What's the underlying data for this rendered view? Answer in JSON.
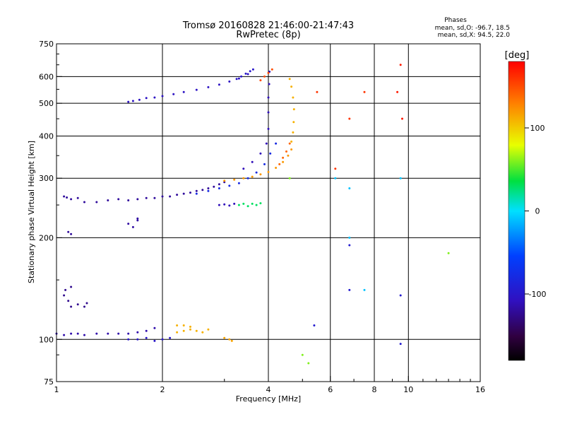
{
  "chart_data": {
    "type": "scatter",
    "title": "Tromsø 20160828 21:46:00-21:47:43",
    "subtitle": "RwPretec (8p)",
    "xlabel": "Frequency [MHz]",
    "ylabel": "Stationary phase Virtual Height [km]",
    "xscale": "log",
    "yscale": "log",
    "xlim": [
      1,
      16
    ],
    "ylim": [
      75,
      750
    ],
    "x_ticks": [
      1,
      2,
      4,
      6,
      8,
      10,
      16
    ],
    "y_ticks": [
      75,
      100,
      200,
      300,
      400,
      500,
      600,
      750
    ],
    "grid": true,
    "stats_box": {
      "title": "Phases",
      "line1": "mean, sd,O: -96.7, 18.5",
      "line2": "mean, sd,X:  94.5, 22.0"
    },
    "colorbar": {
      "label": "[deg]",
      "range": [
        -180,
        180
      ],
      "ticks": [
        100,
        0,
        -100
      ],
      "colormap": "rainbow"
    },
    "point_groups": [
      {
        "x": [
          1.6,
          1.65,
          1.72,
          1.8,
          1.9,
          2.0,
          2.15,
          2.3,
          2.5,
          2.7,
          2.9,
          3.1,
          3.3,
          3.5
        ],
        "y": [
          505,
          508,
          512,
          518,
          520,
          525,
          532,
          540,
          548,
          558,
          568,
          580,
          592,
          610
        ],
        "phase": -105
      },
      {
        "x": [
          3.25,
          3.35,
          3.45,
          3.55,
          3.62
        ],
        "y": [
          590,
          600,
          612,
          622,
          630
        ],
        "phase": -100
      },
      {
        "x": [
          1.05,
          1.07,
          1.1,
          1.15,
          1.2,
          1.3,
          1.4,
          1.5,
          1.6,
          1.7,
          1.8,
          1.9,
          2.0,
          2.1,
          2.2,
          2.3,
          2.4,
          2.5,
          2.6,
          2.7,
          2.8,
          2.9,
          3.0
        ],
        "y": [
          265,
          263,
          260,
          262,
          255,
          255,
          258,
          260,
          258,
          260,
          262,
          262,
          265,
          265,
          268,
          270,
          272,
          275,
          277,
          280,
          283,
          288,
          292
        ],
        "phase": -120
      },
      {
        "x": [
          2.5,
          2.7,
          2.9,
          3.1,
          3.3,
          3.5,
          3.7,
          3.9,
          4.05,
          4.2
        ],
        "y": [
          270,
          275,
          280,
          285,
          290,
          300,
          312,
          330,
          355,
          380
        ],
        "phase": -80
      },
      {
        "x": [
          3.4,
          3.6,
          3.8,
          3.95,
          4.0,
          4.0,
          4.0,
          4.02,
          4.03
        ],
        "y": [
          320,
          335,
          355,
          380,
          420,
          470,
          520,
          570,
          620
        ],
        "phase": -110
      },
      {
        "x": [
          3.0,
          3.2,
          3.4,
          3.6,
          3.8,
          4.0,
          4.2,
          4.4,
          4.55,
          4.65
        ],
        "y": [
          295,
          297,
          300,
          303,
          308,
          313,
          322,
          335,
          350,
          365
        ],
        "phase": 120
      },
      {
        "x": [
          4.65,
          4.7,
          4.72,
          4.73,
          4.7,
          4.65,
          4.6
        ],
        "y": [
          385,
          410,
          440,
          480,
          520,
          560,
          590
        ],
        "phase": 110
      },
      {
        "x": [
          4.3,
          4.4,
          4.5,
          4.6
        ],
        "y": [
          330,
          345,
          360,
          380
        ],
        "phase": 140
      },
      {
        "x": [
          3.8,
          3.9,
          4.0,
          4.1
        ],
        "y": [
          585,
          600,
          615,
          630
        ],
        "phase": 150
      },
      {
        "x": [
          1.0,
          1.05,
          1.1,
          1.15,
          1.2,
          1.3,
          1.4,
          1.5,
          1.6,
          1.7,
          1.8,
          1.9
        ],
        "y": [
          104,
          103,
          104,
          104,
          103,
          104,
          104,
          104,
          104,
          105,
          106,
          108
        ],
        "phase": -115
      },
      {
        "x": [
          1.6,
          1.7,
          1.8,
          1.9,
          2.0,
          2.1
        ],
        "y": [
          100,
          100,
          101,
          99,
          100,
          101
        ],
        "phase": -100
      },
      {
        "x": [
          2.2,
          2.3,
          2.4,
          2.5,
          2.6,
          2.7,
          2.2,
          2.3,
          2.4
        ],
        "y": [
          105,
          106,
          107,
          106,
          105,
          107,
          110,
          110,
          109
        ],
        "phase": 110
      },
      {
        "x": [
          3.0,
          3.1,
          3.15
        ],
        "y": [
          101,
          100,
          99
        ],
        "phase": 115
      },
      {
        "x": [
          1.05,
          1.06,
          1.08,
          1.1,
          1.1
        ],
        "y": [
          135,
          140,
          130,
          143,
          125
        ],
        "phase": -125
      },
      {
        "x": [
          1.15,
          1.2,
          1.22
        ],
        "y": [
          127,
          125,
          128
        ],
        "phase": -125
      },
      {
        "x": [
          1.6,
          1.65,
          1.7,
          1.7
        ],
        "y": [
          220,
          215,
          225,
          228
        ],
        "phase": -118
      },
      {
        "x": [
          1.08,
          1.1
        ],
        "y": [
          208,
          205
        ],
        "phase": -120
      },
      {
        "x": [
          3.3,
          3.4,
          3.5,
          3.6,
          3.7,
          3.8
        ],
        "y": [
          250,
          252,
          248,
          252,
          250,
          253
        ],
        "phase": 30
      },
      {
        "x": [
          2.9,
          3.0,
          3.1,
          3.2
        ],
        "y": [
          250,
          251,
          249,
          252
        ],
        "phase": -110
      },
      {
        "x": [
          5.5,
          6.2,
          6.8,
          7.5
        ],
        "y": [
          540,
          320,
          450,
          540
        ],
        "phase": 160
      },
      {
        "x": [
          6.2,
          6.8,
          6.8,
          7.5,
          9.5
        ],
        "y": [
          300,
          280,
          200,
          140,
          300
        ],
        "phase": -10
      },
      {
        "x": [
          9.3,
          9.5,
          9.6
        ],
        "y": [
          540,
          650,
          450
        ],
        "phase": 170
      },
      {
        "x": [
          5.4,
          6.8,
          6.8,
          9.5,
          9.5
        ],
        "y": [
          110,
          190,
          140,
          135,
          97
        ],
        "phase": -95
      },
      {
        "x": [
          4.6,
          5.0,
          5.2,
          13.0
        ],
        "y": [
          300,
          90,
          85,
          180
        ],
        "phase": 60
      }
    ]
  }
}
